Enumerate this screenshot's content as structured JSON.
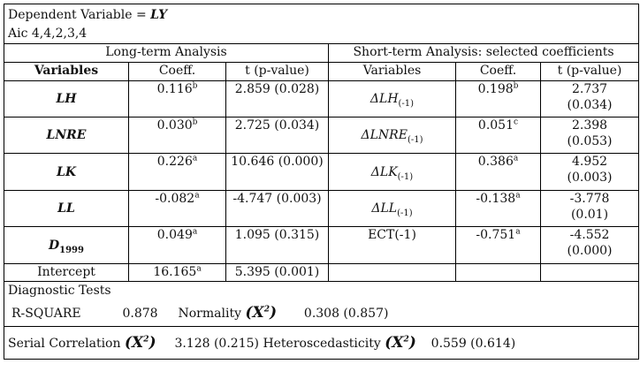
{
  "header": {
    "dependent_label": "Dependent Variable =",
    "dependent_value": "LY",
    "aic": "Aic 4,4,2,3,4"
  },
  "sections": {
    "long_term": "Long-term Analysis",
    "short_term": "Short-term Analysis: selected coefficients"
  },
  "columns": {
    "variables": "Variables",
    "coeff": "Coeff.",
    "tp": "t (p-value)"
  },
  "long_rows": [
    {
      "var": "LH",
      "coef": "0.116",
      "sup": "b",
      "t": "2.859 (0.028)"
    },
    {
      "var": "LNRE",
      "coef": "0.030",
      "sup": "b",
      "t": "2.725 (0.034)"
    },
    {
      "var": "LK",
      "coef": "0.226",
      "sup": "a",
      "t": "10.646 (0.000)"
    },
    {
      "var": "LL",
      "coef": "-0.082",
      "sup": "a",
      "t": "-4.747 (0.003)"
    },
    {
      "var": "D",
      "sub": "1999",
      "coef": "0.049",
      "sup": "a",
      "t": "1.095 (0.315)"
    }
  ],
  "short_rows": [
    {
      "var": "ΔLH",
      "lag": "(-1)",
      "coef": "0.198",
      "sup": "b",
      "t1": "2.737",
      "t2": "(0.034)"
    },
    {
      "var": "ΔLNRE",
      "lag": "(-1)",
      "coef": "0.051",
      "sup": "c",
      "t1": "2.398",
      "t2": "(0.053)"
    },
    {
      "var": "ΔLK",
      "lag": "(-1)",
      "coef": "0.386",
      "sup": "a",
      "t1": "4.952",
      "t2": "(0.003)"
    },
    {
      "var": "ΔLL",
      "lag": "(-1)",
      "coef": "-0.138",
      "sup": "a",
      "t1": "-3.778",
      "t2": "(0.01)"
    },
    {
      "var": "ECT(-1)",
      "lag": "",
      "coef": "-0.751",
      "sup": "a",
      "t1": "-4.552",
      "t2": "(0.000)"
    }
  ],
  "intercept": {
    "label": "Intercept",
    "coef": "16.165",
    "sup": "a",
    "t": "5.395 (0.001)"
  },
  "diagnostics": {
    "title": "Diagnostic Tests",
    "rsq_label": "R-SQUARE",
    "rsq_value": "0.878",
    "normality_label": "Normality",
    "normality_value": "0.308 (0.857)",
    "serial_label": "Serial Correlation",
    "serial_value": "3.128 (0.215)",
    "hetero_label": "Heteroscedasticity",
    "hetero_value": "0.559 (0.614)",
    "chi_symbol": "X",
    "chi_power": "2"
  }
}
